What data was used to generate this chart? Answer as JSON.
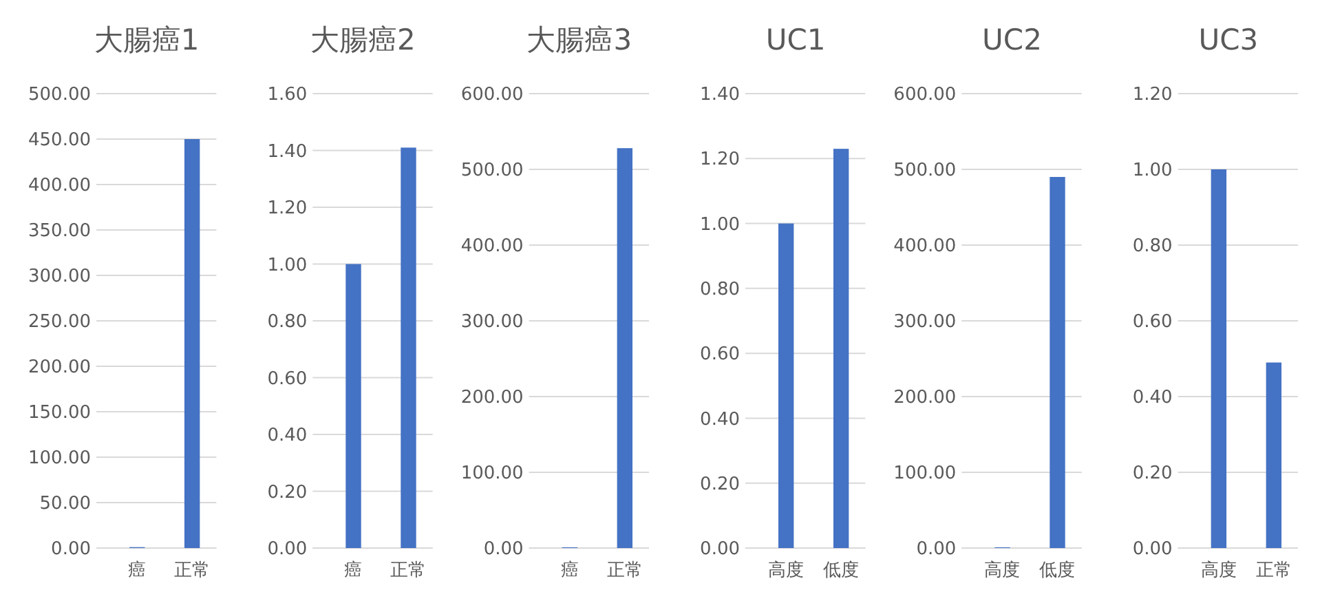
{
  "chart_data": [
    {
      "type": "bar",
      "title": "大腸癌1",
      "categories": [
        "癌",
        "正常"
      ],
      "values": [
        1,
        450
      ],
      "color": "#4472c4",
      "ylim": [
        0,
        500
      ],
      "yticks": [
        {
          "value": 0,
          "label": "0.00"
        },
        {
          "value": 50,
          "label": "50.00"
        },
        {
          "value": 100,
          "label": "100.00"
        },
        {
          "value": 150,
          "label": "150.00"
        },
        {
          "value": 200,
          "label": "200.00"
        },
        {
          "value": 250,
          "label": "250.00"
        },
        {
          "value": 300,
          "label": "300.00"
        },
        {
          "value": 350,
          "label": "350.00"
        },
        {
          "value": 400,
          "label": "400.00"
        },
        {
          "value": 450,
          "label": "450.00"
        },
        {
          "value": 500,
          "label": "500.00"
        }
      ],
      "grid": "y"
    },
    {
      "type": "bar",
      "title": "大腸癌2",
      "categories": [
        "癌",
        "正常"
      ],
      "values": [
        1,
        1.41
      ],
      "color": "#4472c4",
      "ylim": [
        0,
        1.6
      ],
      "yticks": [
        {
          "value": 0,
          "label": "0.00"
        },
        {
          "value": 0.2,
          "label": "0.20"
        },
        {
          "value": 0.4,
          "label": "0.40"
        },
        {
          "value": 0.6,
          "label": "0.60"
        },
        {
          "value": 0.8,
          "label": "0.80"
        },
        {
          "value": 1,
          "label": "1.00"
        },
        {
          "value": 1.2,
          "label": "1.20"
        },
        {
          "value": 1.4,
          "label": "1.40"
        },
        {
          "value": 1.6,
          "label": "1.60"
        }
      ],
      "grid": "y"
    },
    {
      "type": "bar",
      "title": "大腸癌3",
      "categories": [
        "癌",
        "正常"
      ],
      "values": [
        1,
        528
      ],
      "color": "#4472c4",
      "ylim": [
        0,
        600
      ],
      "yticks": [
        {
          "value": 0,
          "label": "0.00"
        },
        {
          "value": 100,
          "label": "100.00"
        },
        {
          "value": 200,
          "label": "200.00"
        },
        {
          "value": 300,
          "label": "300.00"
        },
        {
          "value": 400,
          "label": "400.00"
        },
        {
          "value": 500,
          "label": "500.00"
        },
        {
          "value": 600,
          "label": "600.00"
        }
      ],
      "grid": "y"
    },
    {
      "type": "bar",
      "title": "UC1",
      "categories": [
        "高度",
        "低度"
      ],
      "values": [
        1,
        1.23
      ],
      "color": "#4472c4",
      "ylim": [
        0,
        1.4
      ],
      "yticks": [
        {
          "value": 0,
          "label": "0.00"
        },
        {
          "value": 0.2,
          "label": "0.20"
        },
        {
          "value": 0.4,
          "label": "0.40"
        },
        {
          "value": 0.6,
          "label": "0.60"
        },
        {
          "value": 0.8,
          "label": "0.80"
        },
        {
          "value": 1,
          "label": "1.00"
        },
        {
          "value": 1.2,
          "label": "1.20"
        },
        {
          "value": 1.4,
          "label": "1.40"
        }
      ],
      "grid": "y"
    },
    {
      "type": "bar",
      "title": "UC2",
      "categories": [
        "高度",
        "低度"
      ],
      "values": [
        1,
        490
      ],
      "color": "#4472c4",
      "ylim": [
        0,
        600
      ],
      "yticks": [
        {
          "value": 0,
          "label": "0.00"
        },
        {
          "value": 100,
          "label": "100.00"
        },
        {
          "value": 200,
          "label": "200.00"
        },
        {
          "value": 300,
          "label": "300.00"
        },
        {
          "value": 400,
          "label": "400.00"
        },
        {
          "value": 500,
          "label": "500.00"
        },
        {
          "value": 600,
          "label": "600.00"
        }
      ],
      "grid": "y"
    },
    {
      "type": "bar",
      "title": "UC3",
      "categories": [
        "高度",
        "正常"
      ],
      "values": [
        1,
        0.49
      ],
      "color": "#4472c4",
      "ylim": [
        0,
        1.2
      ],
      "yticks": [
        {
          "value": 0,
          "label": "0.00"
        },
        {
          "value": 0.2,
          "label": "0.20"
        },
        {
          "value": 0.4,
          "label": "0.40"
        },
        {
          "value": 0.6,
          "label": "0.60"
        },
        {
          "value": 0.8,
          "label": "0.80"
        },
        {
          "value": 1,
          "label": "1.00"
        },
        {
          "value": 1.2,
          "label": "1.20"
        }
      ],
      "grid": "y"
    }
  ]
}
